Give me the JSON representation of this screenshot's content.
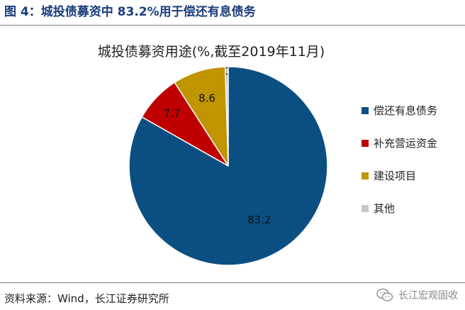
{
  "header": {
    "figure_title": "图 4：城投债募资中 83.2%用于偿还有息债务"
  },
  "footer": {
    "source": "资料来源：Wind，长江证券研究所",
    "watermark": "长江宏观固收"
  },
  "chart_data": {
    "type": "pie",
    "title": "城投债募资用途(%,截至2019年11月)",
    "categories": [
      "偿还有息债务",
      "补充营运资金",
      "建设项目",
      "其他"
    ],
    "values": [
      83.2,
      7.7,
      8.6,
      0.5
    ],
    "data_labels": [
      "83.2",
      "7.7",
      "8.6",
      "0.5"
    ],
    "colors": [
      "#0b4f82",
      "#c00000",
      "#c09500",
      "#c8c8c8"
    ],
    "start": "12 o'clock, counterclockwise from 其他",
    "legend": "right"
  },
  "colors": {
    "title": "#1a3d7c"
  }
}
